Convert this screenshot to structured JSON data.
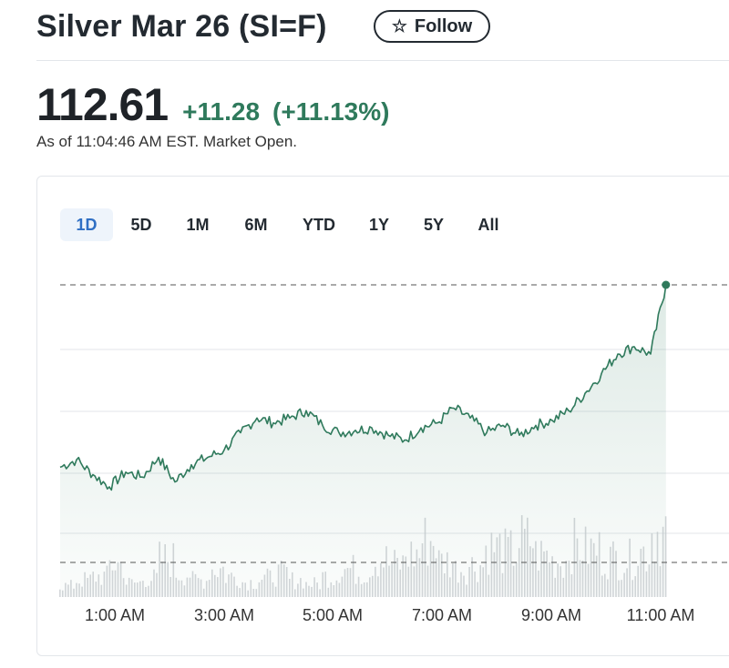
{
  "header": {
    "title": "Silver Mar 26 (SI=F)",
    "follow_label": "Follow",
    "follow_icon": "star-outline-icon"
  },
  "quote": {
    "price": "112.61",
    "change": "+11.28",
    "change_percent": "(+11.13%)",
    "as_of": "As of 11:04:46 AM EST. Market Open.",
    "positive_color": "#2f7a5c"
  },
  "range_tabs": [
    {
      "label": "1D",
      "active": true
    },
    {
      "label": "5D",
      "active": false
    },
    {
      "label": "1M",
      "active": false
    },
    {
      "label": "6M",
      "active": false
    },
    {
      "label": "YTD",
      "active": false
    },
    {
      "label": "1Y",
      "active": false
    },
    {
      "label": "5Y",
      "active": false
    },
    {
      "label": "All",
      "active": false
    }
  ],
  "chart_data": {
    "type": "area",
    "line_color": "#2f7a5c",
    "x_ticks": [
      "1:00 AM",
      "3:00 AM",
      "5:00 AM",
      "7:00 AM",
      "9:00 AM",
      "11:00 AM"
    ],
    "x_hours": [
      0.3,
      0.6,
      0.9,
      1.2,
      1.5,
      1.8,
      2.1,
      2.4,
      2.7,
      3.0,
      3.3,
      3.6,
      3.9,
      4.2,
      4.5,
      4.8,
      5.1,
      5.4,
      5.7,
      6.0,
      6.3,
      6.6,
      6.9,
      7.2,
      7.5,
      7.8,
      8.1,
      8.4,
      8.7,
      9.0,
      9.3,
      9.6,
      9.9,
      10.2,
      10.5,
      10.8,
      11.08
    ],
    "prices": [
      105.5,
      104.9,
      104.4,
      105.0,
      104.8,
      105.6,
      104.6,
      105.3,
      105.6,
      105.9,
      106.6,
      107.2,
      107.0,
      107.2,
      107.5,
      106.9,
      106.6,
      106.7,
      106.8,
      106.5,
      106.3,
      106.8,
      107.0,
      107.6,
      107.2,
      106.6,
      106.9,
      106.5,
      106.9,
      107.1,
      107.5,
      108.2,
      109.0,
      109.8,
      110.1,
      109.8,
      112.61
    ],
    "reference_price": 101.33,
    "last_price": 112.61,
    "volume": [
      12,
      18,
      22,
      35,
      15,
      20,
      40,
      25,
      18,
      30,
      22,
      16,
      20,
      25,
      18,
      14,
      22,
      30,
      26,
      40,
      35,
      45,
      60,
      38,
      30,
      34,
      52,
      48,
      60,
      45,
      38,
      55,
      50,
      42,
      40,
      48,
      70
    ]
  }
}
